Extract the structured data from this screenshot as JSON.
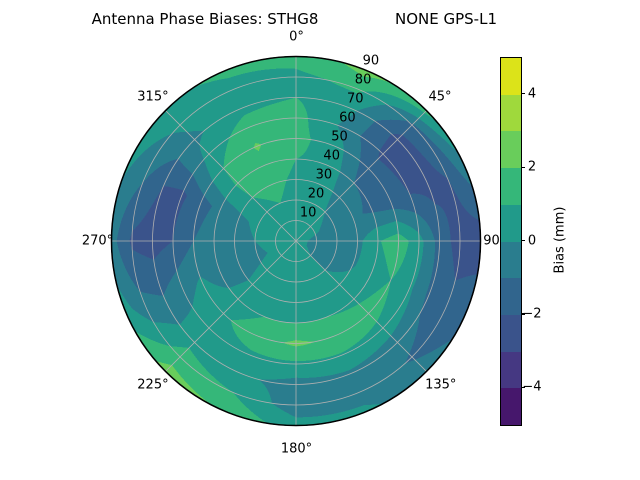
{
  "title": {
    "left": "Antenna Phase Biases: STHG8",
    "right": "NONE GPS-L1"
  },
  "polar": {
    "angle_ticks": [
      {
        "label": "0°",
        "angle": 0
      },
      {
        "label": "45°",
        "angle": 45
      },
      {
        "label": "90",
        "angle": 90
      },
      {
        "label": "135°",
        "angle": 135
      },
      {
        "label": "180°",
        "angle": 180
      },
      {
        "label": "225°",
        "angle": 225
      },
      {
        "label": "270°",
        "angle": 270
      },
      {
        "label": "315°",
        "angle": 315
      }
    ],
    "radial_ticks": [
      {
        "label": "10",
        "zenith": 10
      },
      {
        "label": "20",
        "zenith": 20
      },
      {
        "label": "30",
        "zenith": 30
      },
      {
        "label": "40",
        "zenith": 40
      },
      {
        "label": "50",
        "zenith": 50
      },
      {
        "label": "60",
        "zenith": 60
      },
      {
        "label": "70",
        "zenith": 70
      },
      {
        "label": "80",
        "zenith": 80
      },
      {
        "label": "90",
        "zenith": 90
      }
    ],
    "gridline_color": "#b0b0b0",
    "outline_color": "#000000"
  },
  "colorbar": {
    "label": "Bias (mm)",
    "min": -5,
    "max": 5,
    "ticks": [
      {
        "label": "4",
        "value": 4
      },
      {
        "label": "2",
        "value": 2
      },
      {
        "label": "0",
        "value": 0
      },
      {
        "label": "−2",
        "value": -2
      },
      {
        "label": "−4",
        "value": -4
      }
    ]
  },
  "chart_data": {
    "type": "heatmap",
    "projection": "polar_contourf",
    "title": "Antenna Phase Biases: STHG8        NONE GPS-L1",
    "colorbar_label": "Bias (mm)",
    "units": "mm",
    "colormap": "viridis",
    "levels": [
      -5,
      -4,
      -3,
      -2,
      -1,
      0,
      1,
      2,
      3,
      4,
      5
    ],
    "band_colors": [
      "#46176c",
      "#453882",
      "#3a538b",
      "#31658d",
      "#2a7d8e",
      "#219a8a",
      "#35b779",
      "#69cd5b",
      "#9fd93c",
      "#dce319"
    ],
    "azimuth_deg": [
      0,
      22.5,
      45,
      67.5,
      90,
      112.5,
      135,
      157.5,
      180,
      202.5,
      225,
      247.5,
      270,
      292.5,
      315,
      337.5
    ],
    "zenith_deg": [
      0,
      10,
      20,
      30,
      40,
      50,
      60,
      70,
      80,
      90
    ],
    "values": [
      [
        0.5,
        0.6,
        0.7,
        0.8,
        1.0,
        1.3,
        1.4,
        1.0,
        0.8,
        1.3
      ],
      [
        0.5,
        0.5,
        0.6,
        0.7,
        0.8,
        0.5,
        -0.2,
        0.3,
        1.2,
        2.4
      ],
      [
        0.5,
        0.3,
        0.0,
        -0.4,
        -1.0,
        -1.6,
        -2.2,
        -2.4,
        -1.2,
        1.4
      ],
      [
        0.5,
        0.1,
        -0.4,
        -0.8,
        -1.2,
        -1.6,
        -2.0,
        -2.3,
        -2.0,
        -0.5
      ],
      [
        0.5,
        -0.4,
        -0.6,
        -0.3,
        0.9,
        1.6,
        0.4,
        -1.4,
        -2.5,
        -2.6
      ],
      [
        0.5,
        -0.4,
        -0.5,
        -0.1,
        0.6,
        1.0,
        0.2,
        -1.2,
        -1.7,
        -1.3
      ],
      [
        0.5,
        0.0,
        0.0,
        0.3,
        0.8,
        1.4,
        0.7,
        -0.6,
        -1.1,
        -0.6
      ],
      [
        0.5,
        0.3,
        0.3,
        0.5,
        1.0,
        1.8,
        0.9,
        -0.2,
        -0.4,
        0.2
      ],
      [
        0.5,
        0.5,
        0.4,
        0.5,
        1.0,
        2.2,
        0.8,
        -0.4,
        -0.6,
        0.4
      ],
      [
        0.5,
        0.5,
        0.5,
        0.6,
        1.0,
        1.6,
        0.8,
        0.2,
        1.0,
        1.9
      ],
      [
        0.5,
        0.4,
        0.3,
        0.2,
        0.4,
        0.8,
        0.5,
        0.7,
        1.5,
        2.4
      ],
      [
        0.5,
        0.2,
        -0.2,
        -0.6,
        -0.5,
        0.1,
        -0.4,
        -1.0,
        -0.7,
        0.4
      ],
      [
        0.5,
        0.3,
        0.0,
        -0.5,
        -0.6,
        -1.0,
        -2.0,
        -2.5,
        -2.2,
        -0.6
      ],
      [
        0.5,
        0.4,
        0.2,
        -0.2,
        -0.7,
        -1.4,
        -2.2,
        -2.0,
        -0.9,
        0.1
      ],
      [
        0.5,
        0.6,
        0.8,
        1.0,
        1.2,
        1.0,
        0.4,
        -0.2,
        0.2,
        0.8
      ],
      [
        0.5,
        0.7,
        1.0,
        1.3,
        1.7,
        2.1,
        1.5,
        0.7,
        0.7,
        1.2
      ]
    ]
  }
}
